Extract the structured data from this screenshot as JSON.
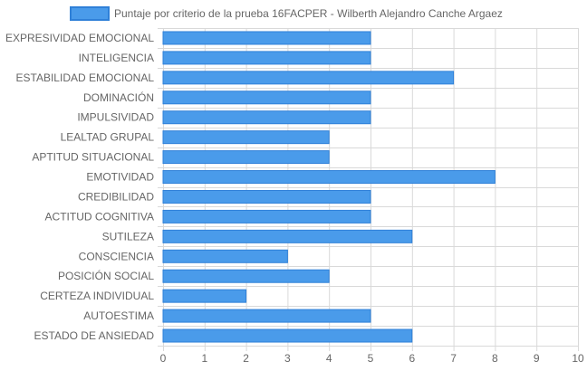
{
  "chart_data": {
    "type": "bar",
    "orientation": "horizontal",
    "legend_position": "top",
    "grid": true,
    "series": [
      {
        "name": "Puntaje por criterio de la prueba 16FACPER - Wilberth Alejandro Canche Argaez",
        "values": [
          5,
          5,
          7,
          5,
          5,
          4,
          4,
          8,
          5,
          5,
          6,
          3,
          4,
          2,
          5,
          6
        ]
      }
    ],
    "categories": [
      "EXPRESIVIDAD EMOCIONAL",
      "INTELIGENCIA",
      "ESTABILIDAD EMOCIONAL",
      "DOMINACIÓN",
      "IMPULSIVIDAD",
      "LEALTAD GRUPAL",
      "APTITUD SITUACIONAL",
      "EMOTIVIDAD",
      "CREDIBILIDAD",
      "ACTITUD COGNITIVA",
      "SUTILEZA",
      "CONSCIENCIA",
      "POSICIÓN SOCIAL",
      "CERTEZA INDIVIDUAL",
      "AUTOESTIMA",
      "ESTADO DE ANSIEDAD"
    ],
    "xlim": [
      0,
      10
    ],
    "x_ticks": [
      "0",
      "1",
      "2",
      "3",
      "4",
      "5",
      "6",
      "7",
      "8",
      "9",
      "10"
    ],
    "colors": {
      "bar_fill": "#4a9bea",
      "bar_border": "#2f80d8",
      "grid": "#d9d9d9",
      "text": "#666666"
    }
  }
}
